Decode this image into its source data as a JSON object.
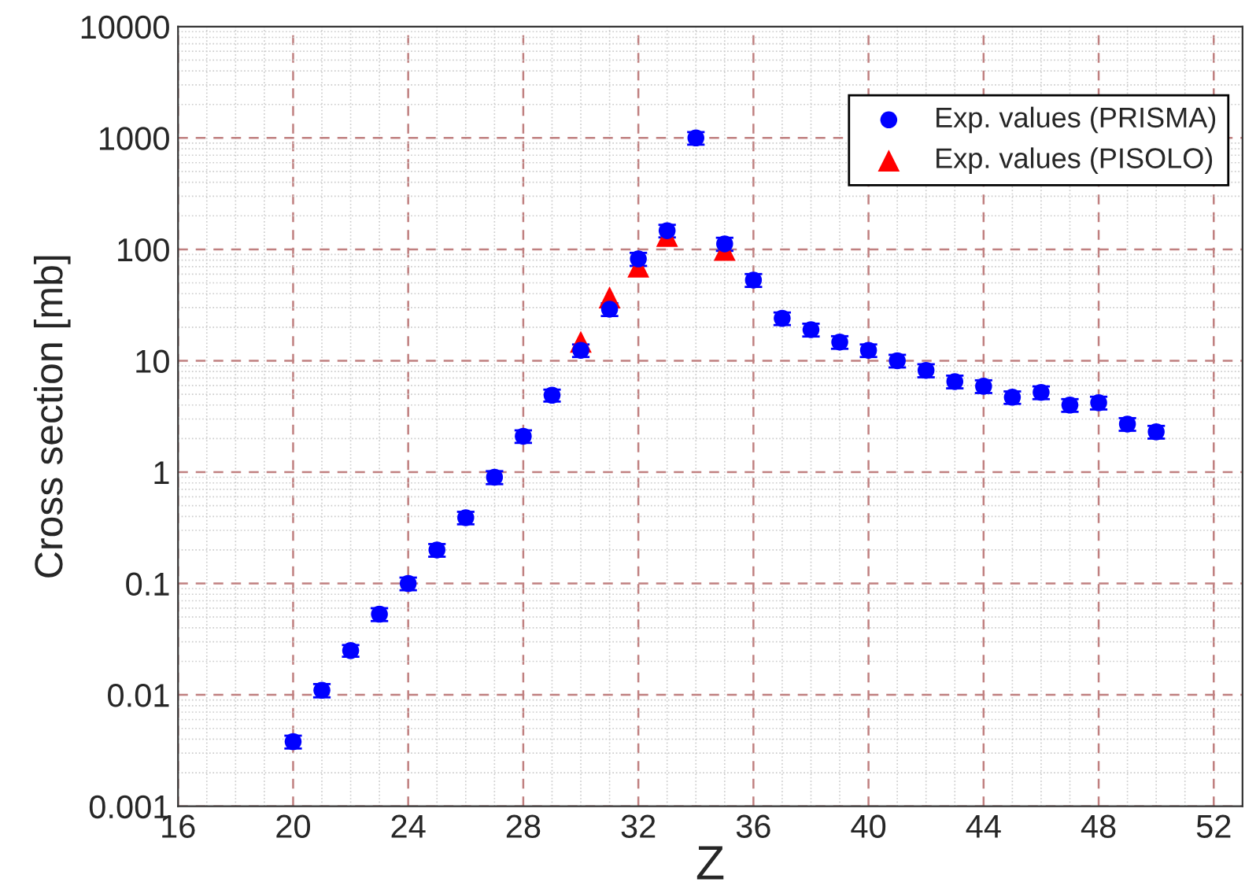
{
  "chart_data": {
    "type": "scatter",
    "xlabel": "Z",
    "ylabel": "Cross section [mb]",
    "xlim": [
      16,
      53
    ],
    "xticks": [
      16,
      20,
      24,
      28,
      32,
      36,
      40,
      44,
      48,
      52
    ],
    "ylim": [
      0.001,
      10000
    ],
    "yticks": [
      0.001,
      0.01,
      0.1,
      1,
      10,
      100,
      1000,
      10000
    ],
    "log": "y",
    "grid": true,
    "legend": "top right",
    "series": [
      {
        "name": "Exp. values (PRISMA)",
        "color": "#0000ff",
        "marker": "circle",
        "x": [
          20,
          21,
          22,
          23,
          24,
          25,
          26,
          27,
          28,
          29,
          30,
          31,
          32,
          33,
          34,
          35,
          36,
          37,
          38,
          39,
          40,
          41,
          42,
          43,
          44,
          45,
          46,
          47,
          48,
          49,
          50
        ],
        "values": [
          0.0038,
          0.011,
          0.025,
          0.053,
          0.1,
          0.2,
          0.39,
          0.9,
          2.1,
          4.9,
          12.4,
          29,
          82,
          147,
          1000,
          112,
          53,
          24,
          19,
          14.7,
          12.4,
          10,
          8.2,
          6.5,
          5.9,
          4.7,
          5.2,
          4.0,
          4.2,
          2.7,
          2.3
        ],
        "errors": [
          0.0005,
          0.0015,
          0.003,
          0.007,
          0.013,
          0.026,
          0.05,
          0.12,
          0.27,
          0.6,
          1.6,
          3.8,
          11,
          19,
          130,
          15,
          7,
          3.1,
          2.5,
          1.9,
          1.6,
          1.3,
          1.1,
          0.85,
          0.77,
          0.6,
          0.68,
          0.52,
          0.55,
          0.35,
          0.3
        ]
      },
      {
        "name": "Exp. values (PISOLO)",
        "color": "#ff0000",
        "marker": "triangle",
        "x": [
          30,
          31,
          32,
          33,
          35
        ],
        "values": [
          14.8,
          37,
          70,
          132,
          99
        ]
      }
    ]
  }
}
